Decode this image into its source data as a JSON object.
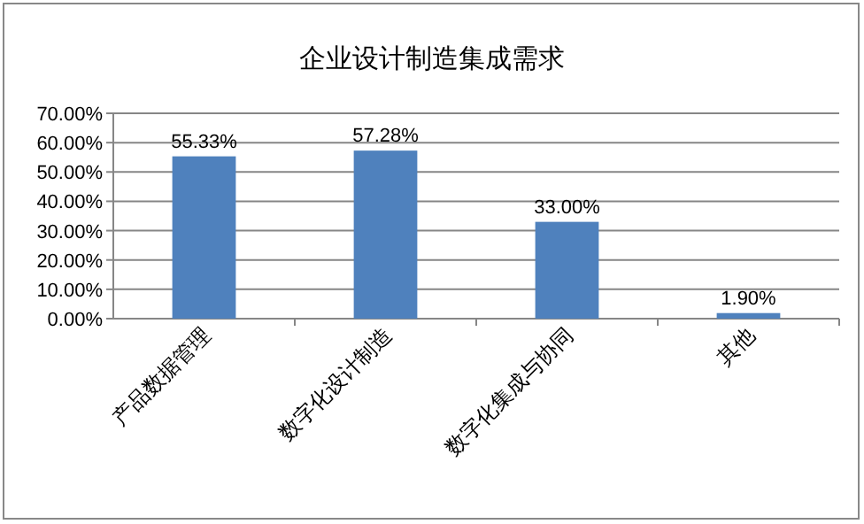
{
  "chart_data": {
    "type": "bar",
    "title": "企业设计制造集成需求",
    "categories": [
      "产品数据管理",
      "数字化设计制造",
      "数字化集成与协同",
      "其他"
    ],
    "values": [
      55.33,
      57.28,
      33.0,
      1.9
    ],
    "value_labels": [
      "55.33%",
      "57.28%",
      "33.00%",
      "1.90%"
    ],
    "color": "#4f81bd",
    "ylim": [
      0,
      70
    ],
    "yticks": [
      {
        "value": 0,
        "label": "0.00%"
      },
      {
        "value": 10,
        "label": "10.00%"
      },
      {
        "value": 20,
        "label": "20.00%"
      },
      {
        "value": 30,
        "label": "30.00%"
      },
      {
        "value": 40,
        "label": "40.00%"
      },
      {
        "value": 50,
        "label": "50.00%"
      },
      {
        "value": 60,
        "label": "60.00%"
      },
      {
        "value": 70,
        "label": "70.00%"
      }
    ],
    "grid": "y"
  }
}
